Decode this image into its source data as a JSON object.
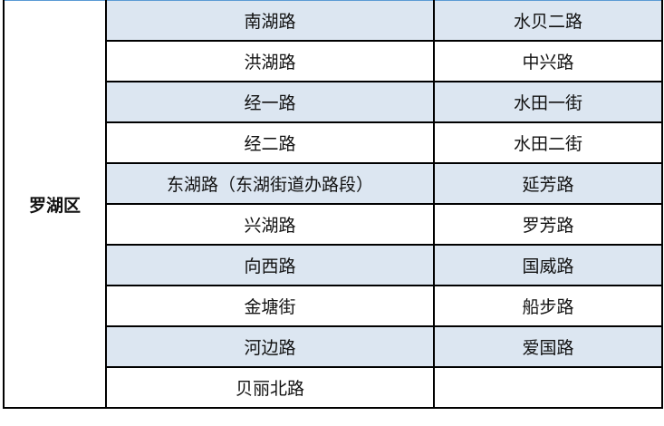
{
  "district": "罗湖区",
  "rows": [
    {
      "left": "南湖路",
      "right": "水贝二路",
      "shaded": true
    },
    {
      "left": "洪湖路",
      "right": "中兴路",
      "shaded": false
    },
    {
      "left": "经一路",
      "right": "水田一街",
      "shaded": true
    },
    {
      "left": "经二路",
      "right": "水田二街",
      "shaded": false
    },
    {
      "left": "东湖路（东湖街道办路段）",
      "right": "延芳路",
      "shaded": true
    },
    {
      "left": "兴湖路",
      "right": "罗芳路",
      "shaded": false
    },
    {
      "left": "向西路",
      "right": "国威路",
      "shaded": true
    },
    {
      "left": "金塘街",
      "right": "船步路",
      "shaded": false
    },
    {
      "left": "河边路",
      "right": "爱国路",
      "shaded": true
    },
    {
      "left": "贝丽北路",
      "right": "",
      "shaded": false
    }
  ],
  "colors": {
    "shade": "#dce6f1",
    "border": "#000000"
  }
}
